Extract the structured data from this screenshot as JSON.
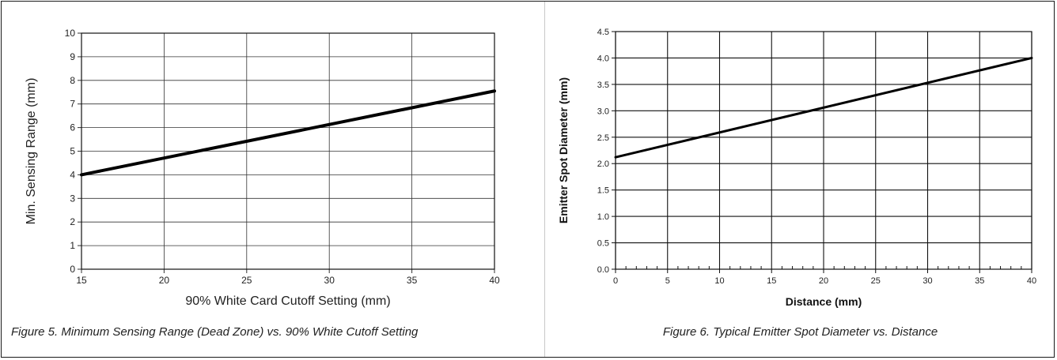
{
  "chart_data": [
    {
      "type": "line",
      "xlabel": "90% White Card Cutoff Setting (mm)",
      "ylabel": "Min. Sensing Range (mm)",
      "xlim": [
        15,
        40
      ],
      "ylim": [
        0,
        10
      ],
      "xticks": [
        15,
        20,
        25,
        30,
        35,
        40
      ],
      "yticks": [
        0,
        1,
        2,
        3,
        4,
        5,
        6,
        7,
        8,
        9,
        10
      ],
      "grid": true,
      "series": [
        {
          "x": [
            15,
            40
          ],
          "y": [
            4.0,
            7.55
          ]
        }
      ],
      "caption": "Figure 5. Minimum Sensing Range (Dead Zone) vs. 90% White Cutoff Setting"
    },
    {
      "type": "line",
      "xlabel": "Distance (mm)",
      "ylabel": "Emitter Spot Diameter (mm)",
      "xlim": [
        0,
        40
      ],
      "ylim": [
        0,
        4.5
      ],
      "xticks": [
        "0",
        "5",
        "10",
        "15",
        "20",
        "25",
        "30",
        "35",
        "40"
      ],
      "yticks": [
        "0.0",
        "0.5",
        "1.0",
        "1.5",
        "2.0",
        "2.5",
        "3.0",
        "3.5",
        "4.0",
        "4.5"
      ],
      "grid": true,
      "series": [
        {
          "x": [
            0,
            40
          ],
          "y": [
            2.12,
            4.0
          ]
        }
      ],
      "caption": "Figure 6. Typical Emitter Spot Diameter vs. Distance"
    }
  ]
}
